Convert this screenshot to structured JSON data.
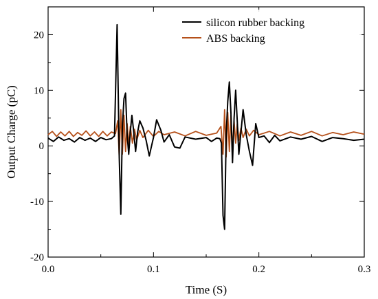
{
  "chart_data": {
    "type": "line",
    "xlabel": "Time (S)",
    "ylabel": "Output Charge (pC)",
    "xlim": [
      0.0,
      0.3
    ],
    "ylim": [
      -20,
      25
    ],
    "x_ticks": [
      0.0,
      0.1,
      0.2,
      0.3
    ],
    "x_tick_labels": [
      "0.0",
      "0.1",
      "0.2",
      "0.3"
    ],
    "y_ticks": [
      -20,
      -10,
      0,
      10,
      20
    ],
    "y_tick_labels": [
      "-20",
      "-10",
      "0",
      "10",
      "20"
    ],
    "grid": false,
    "legend_position": "top-right",
    "series": [
      {
        "name": "silicon rubber backing",
        "color": "#000000",
        "x": [
          0.0,
          0.005,
          0.01,
          0.015,
          0.02,
          0.025,
          0.03,
          0.035,
          0.04,
          0.045,
          0.05,
          0.055,
          0.06,
          0.063,
          0.0655,
          0.066,
          0.0675,
          0.069,
          0.0705,
          0.072,
          0.0735,
          0.075,
          0.0765,
          0.078,
          0.0795,
          0.081,
          0.083,
          0.085,
          0.087,
          0.09,
          0.093,
          0.096,
          0.1,
          0.103,
          0.107,
          0.11,
          0.115,
          0.12,
          0.125,
          0.13,
          0.14,
          0.15,
          0.155,
          0.16,
          0.163,
          0.1645,
          0.166,
          0.1675,
          0.169,
          0.1705,
          0.172,
          0.1735,
          0.175,
          0.1765,
          0.178,
          0.1795,
          0.181,
          0.183,
          0.185,
          0.188,
          0.191,
          0.194,
          0.197,
          0.2,
          0.205,
          0.21,
          0.215,
          0.22,
          0.23,
          0.24,
          0.25,
          0.26,
          0.27,
          0.28,
          0.29,
          0.3
        ],
        "y": [
          1.4,
          0.8,
          1.6,
          1.0,
          1.3,
          0.7,
          1.5,
          1.0,
          1.4,
          0.8,
          1.5,
          1.1,
          1.3,
          1.8,
          21.8,
          16.0,
          -2.0,
          -12.3,
          3.5,
          8.5,
          9.5,
          2.0,
          -1.5,
          2.5,
          5.5,
          3.0,
          -1.0,
          2.5,
          4.5,
          3.2,
          1.0,
          -1.8,
          1.5,
          4.7,
          2.8,
          0.7,
          2.0,
          -0.2,
          -0.4,
          1.6,
          1.2,
          1.5,
          0.8,
          1.4,
          1.3,
          0.5,
          -12.5,
          -15.0,
          2.0,
          8.0,
          11.5,
          6.0,
          -3.0,
          5.0,
          10.0,
          4.5,
          -1.5,
          2.5,
          6.5,
          2.0,
          -1.0,
          -3.5,
          4.0,
          1.5,
          1.8,
          0.6,
          1.9,
          0.9,
          1.6,
          1.2,
          1.7,
          0.8,
          1.5,
          1.3,
          1.0,
          1.2
        ]
      },
      {
        "name": "ABS backing",
        "color": "#b5501a",
        "x": [
          0.0,
          0.004,
          0.008,
          0.012,
          0.016,
          0.02,
          0.024,
          0.028,
          0.032,
          0.036,
          0.04,
          0.044,
          0.048,
          0.052,
          0.056,
          0.06,
          0.064,
          0.066,
          0.0675,
          0.069,
          0.0705,
          0.072,
          0.0735,
          0.075,
          0.0765,
          0.078,
          0.08,
          0.082,
          0.084,
          0.087,
          0.09,
          0.095,
          0.1,
          0.105,
          0.11,
          0.12,
          0.13,
          0.14,
          0.15,
          0.16,
          0.164,
          0.166,
          0.1675,
          0.169,
          0.1705,
          0.172,
          0.1735,
          0.175,
          0.1765,
          0.178,
          0.1795,
          0.181,
          0.183,
          0.185,
          0.188,
          0.191,
          0.195,
          0.2,
          0.21,
          0.22,
          0.23,
          0.24,
          0.25,
          0.26,
          0.27,
          0.28,
          0.29,
          0.3
        ],
        "y": [
          2.0,
          2.6,
          1.7,
          2.5,
          1.8,
          2.6,
          1.7,
          2.4,
          1.9,
          2.7,
          1.8,
          2.5,
          1.7,
          2.6,
          1.8,
          2.5,
          2.2,
          4.5,
          -2.0,
          6.5,
          -1.5,
          5.5,
          -1.0,
          4.0,
          0.0,
          3.5,
          0.5,
          3.0,
          1.0,
          2.8,
          1.5,
          2.8,
          1.7,
          2.6,
          2.0,
          2.5,
          1.8,
          2.6,
          1.9,
          2.3,
          3.5,
          -1.5,
          6.5,
          -2.0,
          6.0,
          -1.0,
          5.5,
          -0.5,
          4.5,
          0.5,
          4.0,
          1.0,
          3.2,
          1.5,
          3.0,
          1.8,
          2.8,
          2.0,
          2.6,
          1.8,
          2.5,
          1.9,
          2.6,
          1.8,
          2.4,
          2.0,
          2.5,
          2.1
        ]
      }
    ]
  }
}
